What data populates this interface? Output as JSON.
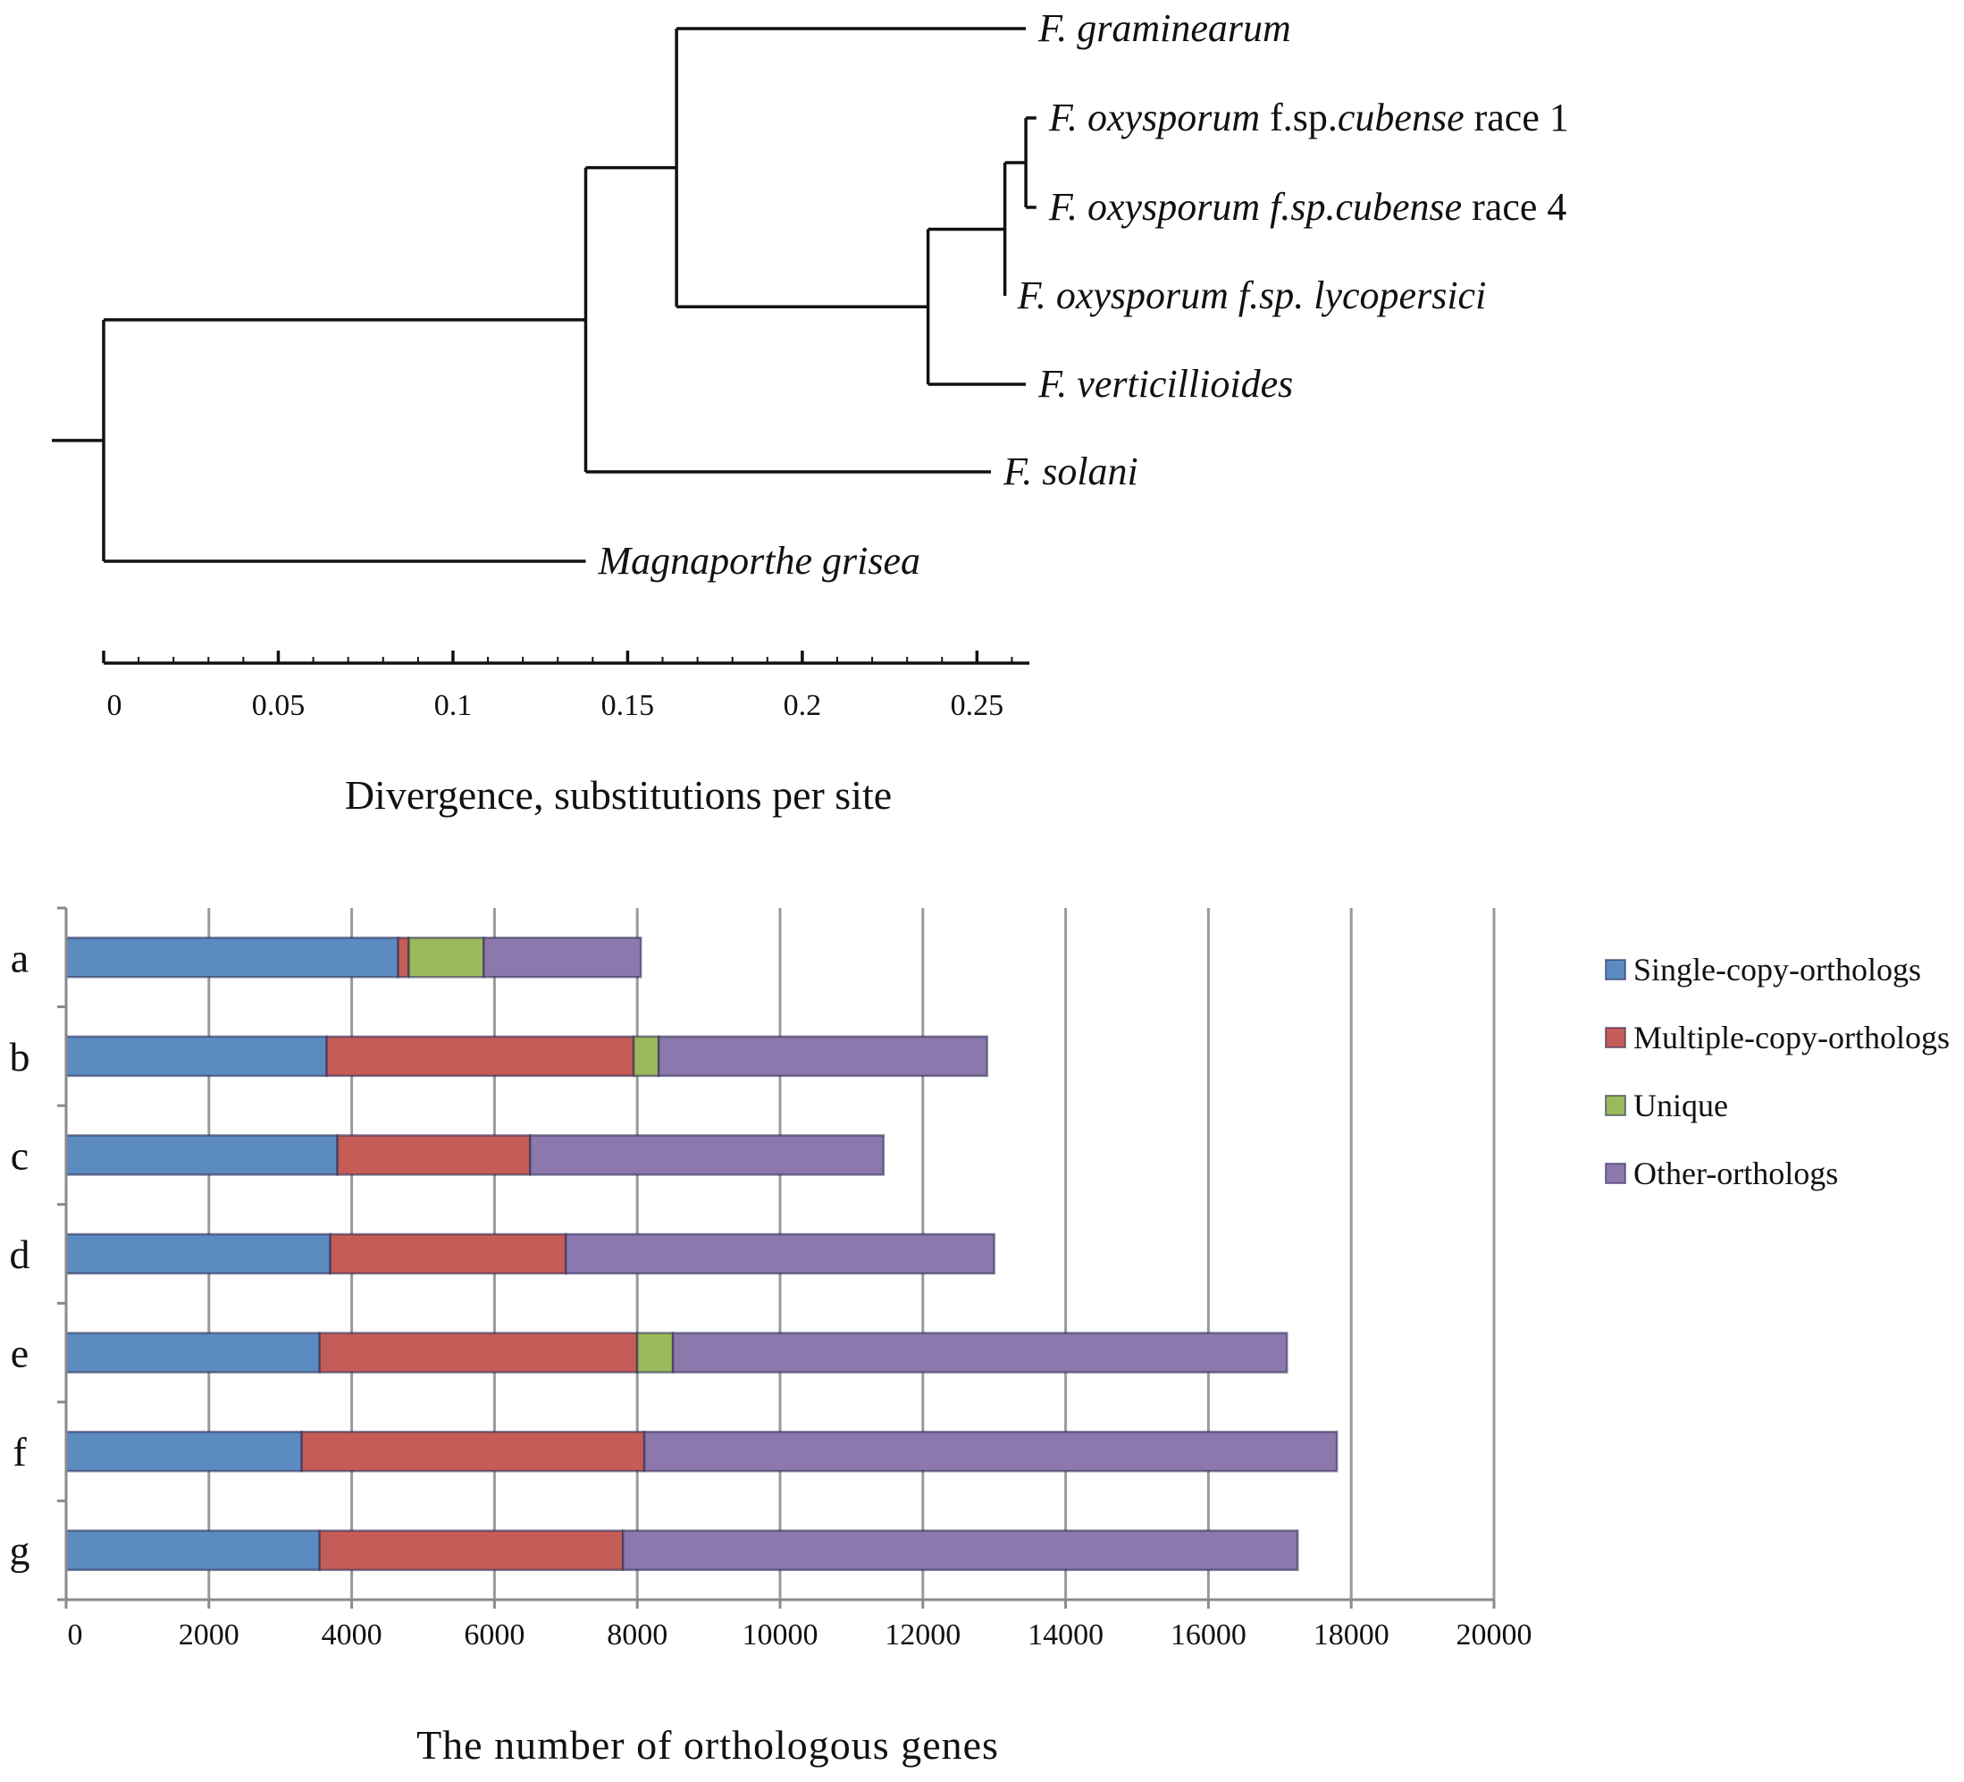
{
  "chart_data": [
    {
      "type": "tree",
      "xlabel": "Divergence, substitutions per site",
      "xlim": [
        0,
        0.265
      ],
      "ticks": {
        "major": [
          0,
          0.05,
          0.1,
          0.15,
          0.2,
          0.25
        ],
        "labels": [
          "0",
          "0.05",
          "0.1",
          "0.15",
          "0.2",
          "0.25"
        ],
        "minor_step": 0.01
      },
      "nodes": [
        {
          "id": "root",
          "depth": 0.0
        },
        {
          "id": "fusarium",
          "depth": 0.138
        },
        {
          "id": "n_gram",
          "depth": 0.164
        },
        {
          "id": "n_oxy_vert",
          "depth": 0.236
        },
        {
          "id": "n_oxy",
          "depth": 0.258
        },
        {
          "id": "n_cub",
          "depth": 0.264
        }
      ],
      "edges": [
        [
          "root",
          "fusarium"
        ],
        [
          "root",
          "Magnaporthe grisea"
        ],
        [
          "fusarium",
          "n_gram"
        ],
        [
          "fusarium",
          "F. solani"
        ],
        [
          "n_gram",
          "F. graminearum"
        ],
        [
          "n_gram",
          "n_oxy_vert"
        ],
        [
          "n_oxy_vert",
          "n_oxy"
        ],
        [
          "n_oxy_vert",
          "F. verticillioides"
        ],
        [
          "n_oxy",
          "n_cub"
        ],
        [
          "n_oxy",
          "F. oxysporum f.sp. lycopersici"
        ],
        [
          "n_cub",
          "F. oxysporum f.sp.cubense race 1"
        ],
        [
          "n_cub",
          "F. oxysporum f.sp.cubense race 4"
        ]
      ],
      "leaves": [
        {
          "name": "F. graminearum",
          "depth": 0.264,
          "label": [
            {
              "t": "F. graminearum",
              "i": true
            }
          ]
        },
        {
          "name": "F. oxysporum f.sp.cubense race 1",
          "depth": 0.267,
          "label": [
            {
              "t": "F. oxysporum",
              "i": true
            },
            {
              "t": " f.sp.",
              "i": false
            },
            {
              "t": "cubense",
              "i": true
            },
            {
              "t": " race 1",
              "i": false
            }
          ]
        },
        {
          "name": "F. oxysporum f.sp.cubense race 4",
          "depth": 0.267,
          "label": [
            {
              "t": "F. oxysporum f.sp.cubense",
              "i": true
            },
            {
              "t": " race 4",
              "i": false
            }
          ]
        },
        {
          "name": "F. oxysporum f.sp. lycopersici",
          "depth": 0.258,
          "label": [
            {
              "t": "F. oxysporum f.sp. lycopersici",
              "i": true
            }
          ]
        },
        {
          "name": "F. verticillioides",
          "depth": 0.264,
          "label": [
            {
              "t": "F. verticillioides",
              "i": true
            }
          ]
        },
        {
          "name": "F. solani",
          "depth": 0.254,
          "label": [
            {
              "t": "F. solani",
              "i": true
            }
          ]
        },
        {
          "name": "Magnaporthe grisea",
          "depth": 0.138,
          "label": [
            {
              "t": "Magnaporthe grisea",
              "i": true
            }
          ]
        }
      ]
    },
    {
      "type": "bar",
      "orientation": "horizontal",
      "stacked": true,
      "categories": [
        "a",
        "b",
        "c",
        "d",
        "e",
        "f",
        "g"
      ],
      "series": [
        {
          "name": "Single-copy-orthologs",
          "color": "#5b8bc0",
          "values": [
            4650,
            3650,
            3800,
            3700,
            3550,
            3300,
            3550
          ]
        },
        {
          "name": "Multiple-copy-orthologs",
          "color": "#c45c58",
          "values": [
            150,
            4300,
            2700,
            3300,
            4450,
            4800,
            4250
          ]
        },
        {
          "name": "Unique",
          "color": "#9aba5c",
          "values": [
            1050,
            350,
            0,
            0,
            500,
            0,
            0
          ]
        },
        {
          "name": "Other-orthologs",
          "color": "#8d78ad",
          "values": [
            2200,
            4600,
            4950,
            6000,
            8600,
            9700,
            9450
          ]
        }
      ],
      "xlabel": "The number of orthologous genes",
      "xlim": [
        0,
        20000
      ],
      "xticks": [
        0,
        2000,
        4000,
        6000,
        8000,
        10000,
        12000,
        14000,
        16000,
        18000,
        20000
      ],
      "grid": true,
      "legend": "right"
    }
  ]
}
